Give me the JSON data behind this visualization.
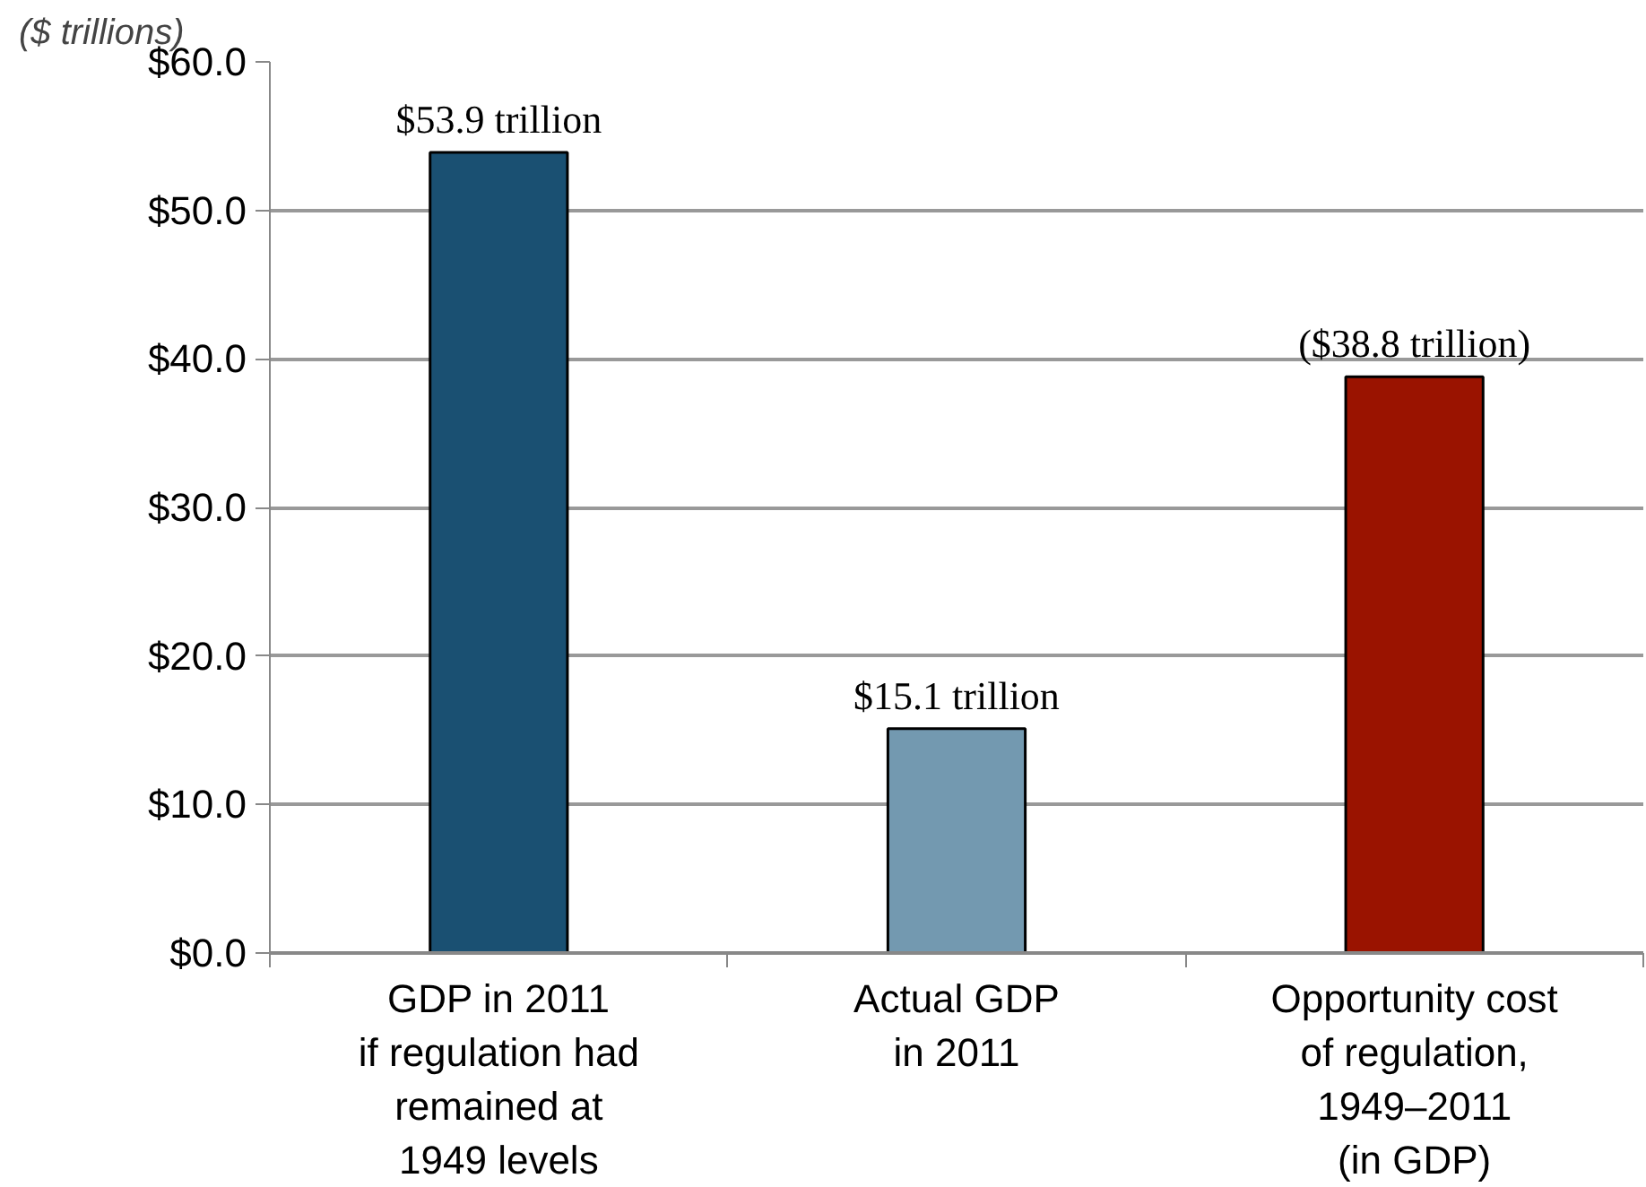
{
  "chart_data": {
    "type": "bar",
    "ylabel": "($ trillions)",
    "categories": [
      "GDP in 2011\nif regulation had\nremained at\n1949 levels",
      "Actual GDP\nin 2011",
      "Opportunity cost\nof regulation,\n1949–2011\n(in GDP)"
    ],
    "values": [
      53.9,
      15.1,
      38.8
    ],
    "colors": [
      "#1a5072",
      "#7399b0",
      "#9a1300"
    ],
    "value_labels": [
      "$53.9 trillion",
      "$15.1 trillion",
      "($38.8 trillion)"
    ],
    "ylim": [
      0,
      60
    ],
    "yticks": [
      {
        "value": 0,
        "label": "$0.0"
      },
      {
        "value": 10,
        "label": "$10.0"
      },
      {
        "value": 20,
        "label": "$20.0"
      },
      {
        "value": 30,
        "label": "$30.0"
      },
      {
        "value": 40,
        "label": "$40.0"
      },
      {
        "value": 50,
        "label": "$50.0"
      },
      {
        "value": 60,
        "label": "$60.0"
      }
    ],
    "grid": "y"
  }
}
